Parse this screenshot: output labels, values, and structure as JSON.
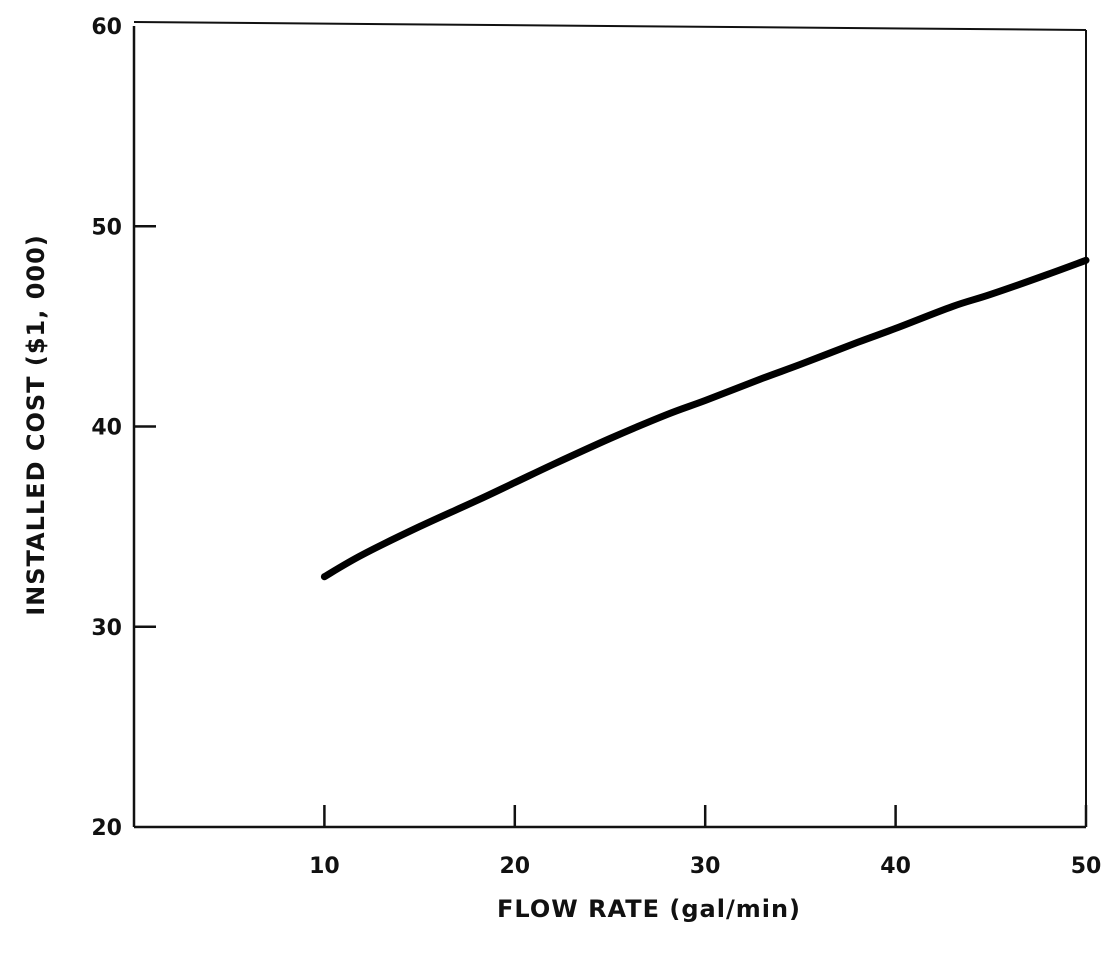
{
  "chart_data": {
    "type": "line",
    "title": "",
    "xlabel": "FLOW RATE (gal/min)",
    "ylabel": "INSTALLED COST ($1, 000)",
    "xlim": [
      0,
      50
    ],
    "ylim": [
      20,
      60
    ],
    "x_ticks": [
      10,
      20,
      30,
      40,
      50
    ],
    "y_ticks": [
      20,
      30,
      40,
      50,
      60
    ],
    "x_tick_labels": [
      "10",
      "20",
      "30",
      "40",
      "50"
    ],
    "y_tick_labels": [
      "20",
      "30",
      "40",
      "50",
      "60"
    ],
    "grid": false,
    "legend": "none",
    "series": [
      {
        "x": [
          10,
          12,
          15,
          18,
          20,
          22,
          25,
          28,
          30,
          33,
          35,
          38,
          40,
          43,
          45,
          48,
          50
        ],
        "y": [
          32.5,
          33.6,
          35.0,
          36.3,
          37.2,
          38.1,
          39.4,
          40.6,
          41.3,
          42.4,
          43.1,
          44.2,
          44.9,
          46.0,
          46.6,
          47.6,
          48.3
        ]
      }
    ],
    "colors": {
      "line": "#000000",
      "axes": "#111111"
    }
  }
}
